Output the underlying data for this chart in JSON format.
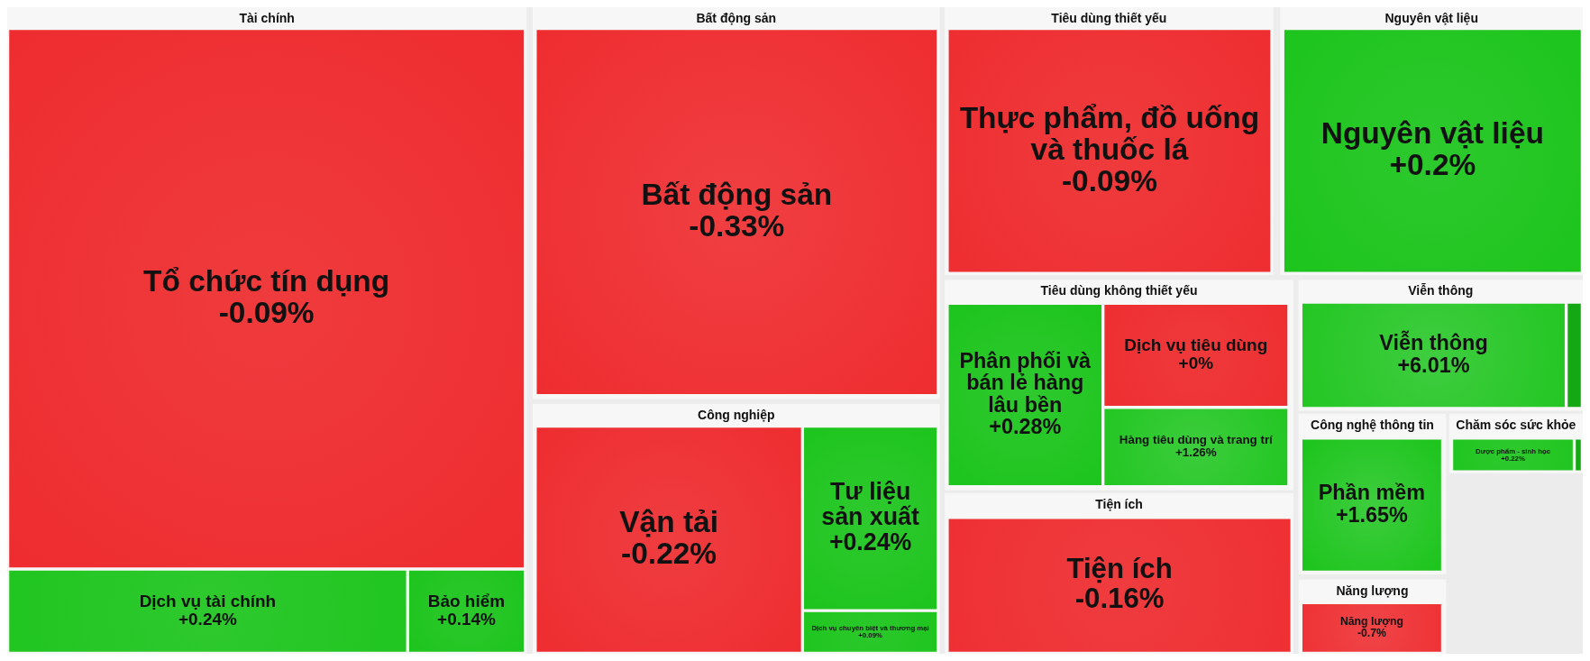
{
  "chart_data": {
    "type": "other",
    "categories": [
      "Tổ chức tín dụng",
      "Dịch vụ tài chính",
      "Bảo hiểm",
      "Bất động sản",
      "Vận tải",
      "Tư liệu sản xuất",
      "Dịch vụ chuyên biệt và thương mại",
      "Thực phẩm, đồ uống và thuốc lá",
      "Nguyên vật liệu",
      "Phân phối và bán lẻ hàng lâu bền",
      "Dịch vụ tiêu dùng",
      "Hàng tiêu dùng và trang trí",
      "Tiện ích",
      "Viễn thông",
      null,
      "Phần mềm",
      "Dược phẩm - sinh học",
      null,
      "Năng lượng"
    ],
    "series": [
      {
        "name": "Tài chính",
        "values": [
          -0.09,
          0.24,
          0.14,
          null,
          null,
          null,
          null,
          null,
          null,
          null,
          null,
          null,
          null,
          null,
          null,
          null,
          null,
          null,
          null
        ],
        "value_labels": [
          "-0.09%",
          "+0.24%",
          "+0.14%",
          null,
          null,
          null,
          null,
          null,
          null,
          null,
          null,
          null,
          null,
          null,
          null,
          null,
          null,
          null,
          null
        ],
        "colors": [
          "#ee2c2f",
          "#1bc41b",
          "#1bc41b",
          null,
          null,
          null,
          null,
          null,
          null,
          null,
          null,
          null,
          null,
          null,
          null,
          null,
          null,
          null,
          null
        ]
      },
      {
        "name": "Bất động sản",
        "values": [
          null,
          null,
          null,
          -0.33,
          null,
          null,
          null,
          null,
          null,
          null,
          null,
          null,
          null,
          null,
          null,
          null,
          null,
          null,
          null
        ],
        "value_labels": [
          null,
          null,
          null,
          "-0.33%",
          null,
          null,
          null,
          null,
          null,
          null,
          null,
          null,
          null,
          null,
          null,
          null,
          null,
          null,
          null
        ],
        "colors": [
          null,
          null,
          null,
          "#ee2c2f",
          null,
          null,
          null,
          null,
          null,
          null,
          null,
          null,
          null,
          null,
          null,
          null,
          null,
          null,
          null
        ]
      },
      {
        "name": "Công nghiệp",
        "values": [
          null,
          null,
          null,
          null,
          -0.22,
          0.24,
          0.09,
          null,
          null,
          null,
          null,
          null,
          null,
          null,
          null,
          null,
          null,
          null,
          null
        ],
        "value_labels": [
          null,
          null,
          null,
          null,
          "-0.22%",
          "+0.24%",
          "+0.09%",
          null,
          null,
          null,
          null,
          null,
          null,
          null,
          null,
          null,
          null,
          null,
          null
        ],
        "colors": [
          null,
          null,
          null,
          null,
          "#ee2c2f",
          "#1bc41b",
          "#1bc41b",
          null,
          null,
          null,
          null,
          null,
          null,
          null,
          null,
          null,
          null,
          null,
          null
        ]
      },
      {
        "name": "Tiêu dùng thiết yếu",
        "values": [
          null,
          null,
          null,
          null,
          null,
          null,
          null,
          -0.09,
          null,
          null,
          null,
          null,
          null,
          null,
          null,
          null,
          null,
          null,
          null
        ],
        "value_labels": [
          null,
          null,
          null,
          null,
          null,
          null,
          null,
          "-0.09%",
          null,
          null,
          null,
          null,
          null,
          null,
          null,
          null,
          null,
          null,
          null
        ],
        "colors": [
          null,
          null,
          null,
          null,
          null,
          null,
          null,
          "#ee2c2f",
          null,
          null,
          null,
          null,
          null,
          null,
          null,
          null,
          null,
          null,
          null
        ]
      },
      {
        "name": "Nguyên vật liệu",
        "values": [
          null,
          null,
          null,
          null,
          null,
          null,
          null,
          null,
          0.2,
          null,
          null,
          null,
          null,
          null,
          null,
          null,
          null,
          null,
          null
        ],
        "value_labels": [
          null,
          null,
          null,
          null,
          null,
          null,
          null,
          null,
          "+0.2%",
          null,
          null,
          null,
          null,
          null,
          null,
          null,
          null,
          null,
          null
        ],
        "colors": [
          null,
          null,
          null,
          null,
          null,
          null,
          null,
          null,
          "#1bc41b",
          null,
          null,
          null,
          null,
          null,
          null,
          null,
          null,
          null,
          null
        ]
      },
      {
        "name": "Tiêu dùng không thiết yếu",
        "values": [
          null,
          null,
          null,
          null,
          null,
          null,
          null,
          null,
          null,
          0.28,
          0,
          1.26,
          null,
          null,
          null,
          null,
          null,
          null,
          null
        ],
        "value_labels": [
          null,
          null,
          null,
          null,
          null,
          null,
          null,
          null,
          null,
          "+0.28%",
          "+0%",
          "+1.26%",
          null,
          null,
          null,
          null,
          null,
          null,
          null
        ],
        "colors": [
          null,
          null,
          null,
          null,
          null,
          null,
          null,
          null,
          null,
          "#1bc41b",
          "#ee2c2f",
          "#1bc41b",
          null,
          null,
          null,
          null,
          null,
          null,
          null
        ]
      },
      {
        "name": "Tiện ích",
        "values": [
          null,
          null,
          null,
          null,
          null,
          null,
          null,
          null,
          null,
          null,
          null,
          null,
          -0.16,
          null,
          null,
          null,
          null,
          null,
          null
        ],
        "value_labels": [
          null,
          null,
          null,
          null,
          null,
          null,
          null,
          null,
          null,
          null,
          null,
          null,
          "-0.16%",
          null,
          null,
          null,
          null,
          null,
          null
        ],
        "colors": [
          null,
          null,
          null,
          null,
          null,
          null,
          null,
          null,
          null,
          null,
          null,
          null,
          "#ee2c2f",
          null,
          null,
          null,
          null,
          null,
          null
        ]
      },
      {
        "name": "Viễn thông",
        "values": [
          null,
          null,
          null,
          null,
          null,
          null,
          null,
          null,
          null,
          null,
          null,
          null,
          null,
          6.01,
          null,
          null,
          null,
          null,
          null
        ],
        "value_labels": [
          null,
          null,
          null,
          null,
          null,
          null,
          null,
          null,
          null,
          null,
          null,
          null,
          null,
          "+6.01%",
          null,
          null,
          null,
          null,
          null
        ],
        "colors": [
          null,
          null,
          null,
          null,
          null,
          null,
          null,
          null,
          null,
          null,
          null,
          null,
          null,
          "#1bc41b",
          "#14a814",
          null,
          null,
          null,
          null
        ]
      },
      {
        "name": "Công nghệ thông tin",
        "values": [
          null,
          null,
          null,
          null,
          null,
          null,
          null,
          null,
          null,
          null,
          null,
          null,
          null,
          null,
          null,
          1.65,
          null,
          null,
          null
        ],
        "value_labels": [
          null,
          null,
          null,
          null,
          null,
          null,
          null,
          null,
          null,
          null,
          null,
          null,
          null,
          null,
          null,
          "+1.65%",
          null,
          null,
          null
        ],
        "colors": [
          null,
          null,
          null,
          null,
          null,
          null,
          null,
          null,
          null,
          null,
          null,
          null,
          null,
          null,
          null,
          "#1bc41b",
          null,
          null,
          null
        ]
      },
      {
        "name": "Chăm sóc sức khỏe",
        "values": [
          null,
          null,
          null,
          null,
          null,
          null,
          null,
          null,
          null,
          null,
          null,
          null,
          null,
          null,
          null,
          null,
          0.22,
          null,
          null
        ],
        "value_labels": [
          null,
          null,
          null,
          null,
          null,
          null,
          null,
          null,
          null,
          null,
          null,
          null,
          null,
          null,
          null,
          null,
          "+0.22%",
          null,
          null
        ],
        "colors": [
          null,
          null,
          null,
          null,
          null,
          null,
          null,
          null,
          null,
          null,
          null,
          null,
          null,
          null,
          null,
          null,
          "#1bc41b",
          "#14a814",
          null
        ]
      },
      {
        "name": "Năng lượng",
        "values": [
          null,
          null,
          null,
          null,
          null,
          null,
          null,
          null,
          null,
          null,
          null,
          null,
          null,
          null,
          null,
          null,
          null,
          null,
          -0.7
        ],
        "value_labels": [
          null,
          null,
          null,
          null,
          null,
          null,
          null,
          null,
          null,
          null,
          null,
          null,
          null,
          null,
          null,
          null,
          null,
          null,
          "-0.7%"
        ],
        "colors": [
          null,
          null,
          null,
          null,
          null,
          null,
          null,
          null,
          null,
          null,
          null,
          null,
          null,
          null,
          null,
          null,
          null,
          null,
          "#ee2c2f"
        ]
      }
    ]
  }
}
